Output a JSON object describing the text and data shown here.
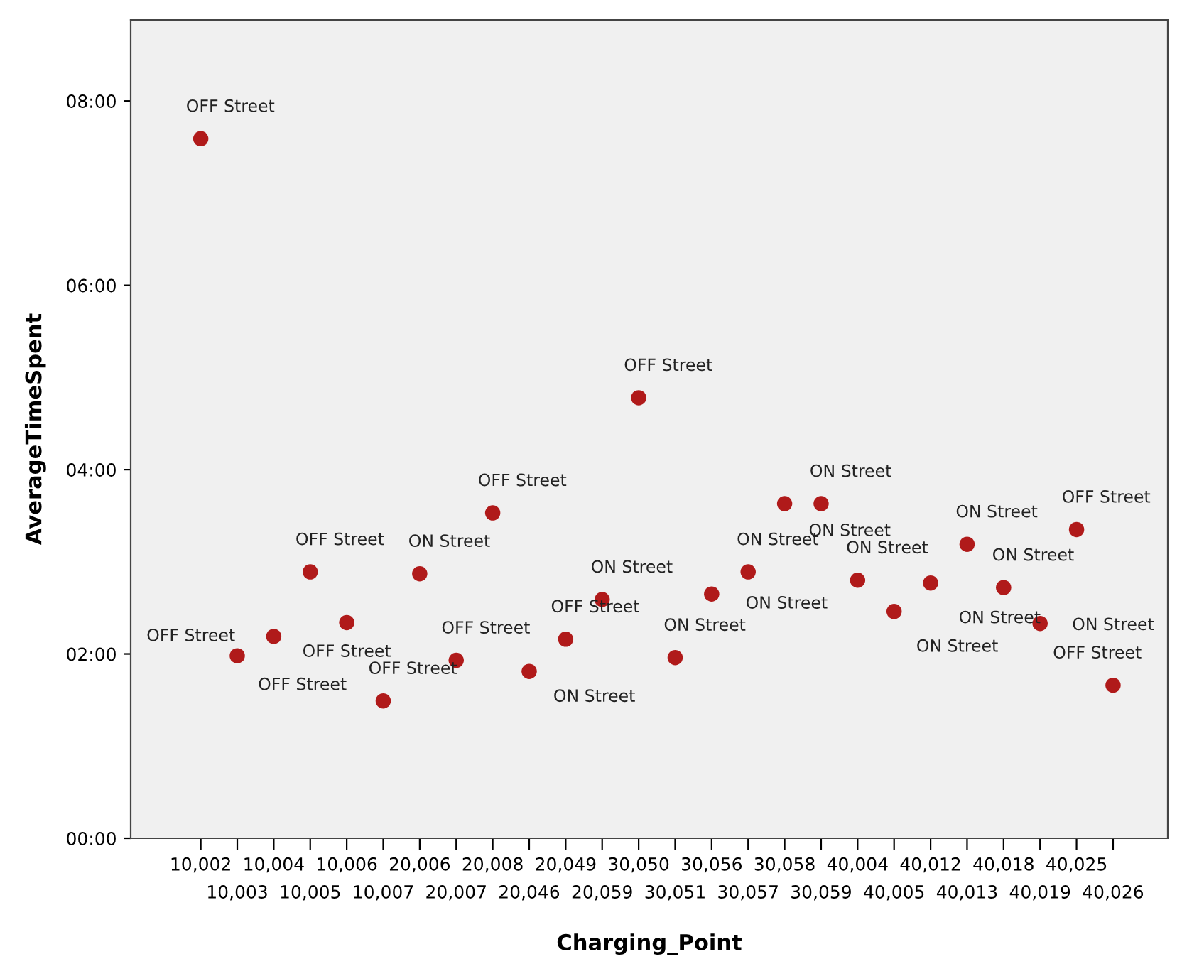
{
  "chart_data": {
    "type": "scatter",
    "xlabel": "Charging_Point",
    "ylabel": "AverageTimeSpent",
    "categories": [
      "10,002",
      "10,003",
      "10,004",
      "10,005",
      "10,006",
      "10,007",
      "20,006",
      "20,007",
      "20,008",
      "20,046",
      "20,049",
      "20,059",
      "30,050",
      "30,051",
      "30,056",
      "30,057",
      "30,058",
      "30,059",
      "40,004",
      "40,005",
      "40,012",
      "40,013",
      "40,018",
      "40,019",
      "40,025",
      "40,026"
    ],
    "series": [
      {
        "color": "#b01a1a",
        "values": [
          7.59,
          1.98,
          2.19,
          2.89,
          2.34,
          1.49,
          2.87,
          1.93,
          3.53,
          1.81,
          2.16,
          2.59,
          4.78,
          1.96,
          2.65,
          2.89,
          3.63,
          3.63,
          2.8,
          2.46,
          2.77,
          3.19,
          2.72,
          2.33,
          3.35,
          1.66
        ]
      }
    ],
    "ylim": [
      0,
      8.88
    ],
    "yticks": [
      {
        "value": 0,
        "label": "00:00"
      },
      {
        "value": 2,
        "label": "02:00"
      },
      {
        "value": 4,
        "label": "04:00"
      },
      {
        "value": 6,
        "label": "06:00"
      },
      {
        "value": 8,
        "label": "08:00"
      }
    ],
    "marker": "circle",
    "grid": false,
    "legend": false,
    "annotations": [
      {
        "text": "OFF Street",
        "x": "10,002",
        "y": 7.59
      },
      {
        "text": "OFF Street",
        "x": "10,003",
        "y": 1.98
      },
      {
        "text": "OFF Street",
        "x": "10,004",
        "y": 2.19
      },
      {
        "text": "OFF Street",
        "x": "10,005",
        "y": 2.89
      },
      {
        "text": "OFF Street",
        "x": "10,006",
        "y": 2.34
      },
      {
        "text": "OFF Street",
        "x": "10,007",
        "y": 1.49
      },
      {
        "text": "ON Street",
        "x": "20,006",
        "y": 2.87
      },
      {
        "text": "OFF Street",
        "x": "20,007",
        "y": 1.93
      },
      {
        "text": "OFF Street",
        "x": "20,008",
        "y": 3.53
      },
      {
        "text": "ON Street",
        "x": "20,046",
        "y": 1.81
      },
      {
        "text": "OFF Street",
        "x": "20,049",
        "y": 2.16
      },
      {
        "text": "ON Street",
        "x": "20,059",
        "y": 2.59
      },
      {
        "text": "OFF Street",
        "x": "30,050",
        "y": 4.78
      },
      {
        "text": "ON Street",
        "x": "30,051",
        "y": 1.96
      },
      {
        "text": "ON Street",
        "x": "30,056",
        "y": 2.65
      },
      {
        "text": "ON Street",
        "x": "30,057",
        "y": 2.89
      },
      {
        "text": "ON Street",
        "x": "30,058",
        "y": 3.63
      },
      {
        "text": "ON Street",
        "x": "30,059",
        "y": 3.63
      },
      {
        "text": "ON Street",
        "x": "40,004",
        "y": 2.8
      },
      {
        "text": "ON Street",
        "x": "40,005",
        "y": 2.46
      },
      {
        "text": "ON Street",
        "x": "40,012",
        "y": 2.77
      },
      {
        "text": "ON Street",
        "x": "40,013",
        "y": 3.19
      },
      {
        "text": "ON Street",
        "x": "40,018",
        "y": 2.72
      },
      {
        "text": "ON Street",
        "x": "40,019",
        "y": 2.33
      },
      {
        "text": "OFF Street",
        "x": "40,025",
        "y": 3.35
      },
      {
        "text": "OFF Street",
        "x": "40,026",
        "y": 1.66
      }
    ]
  }
}
